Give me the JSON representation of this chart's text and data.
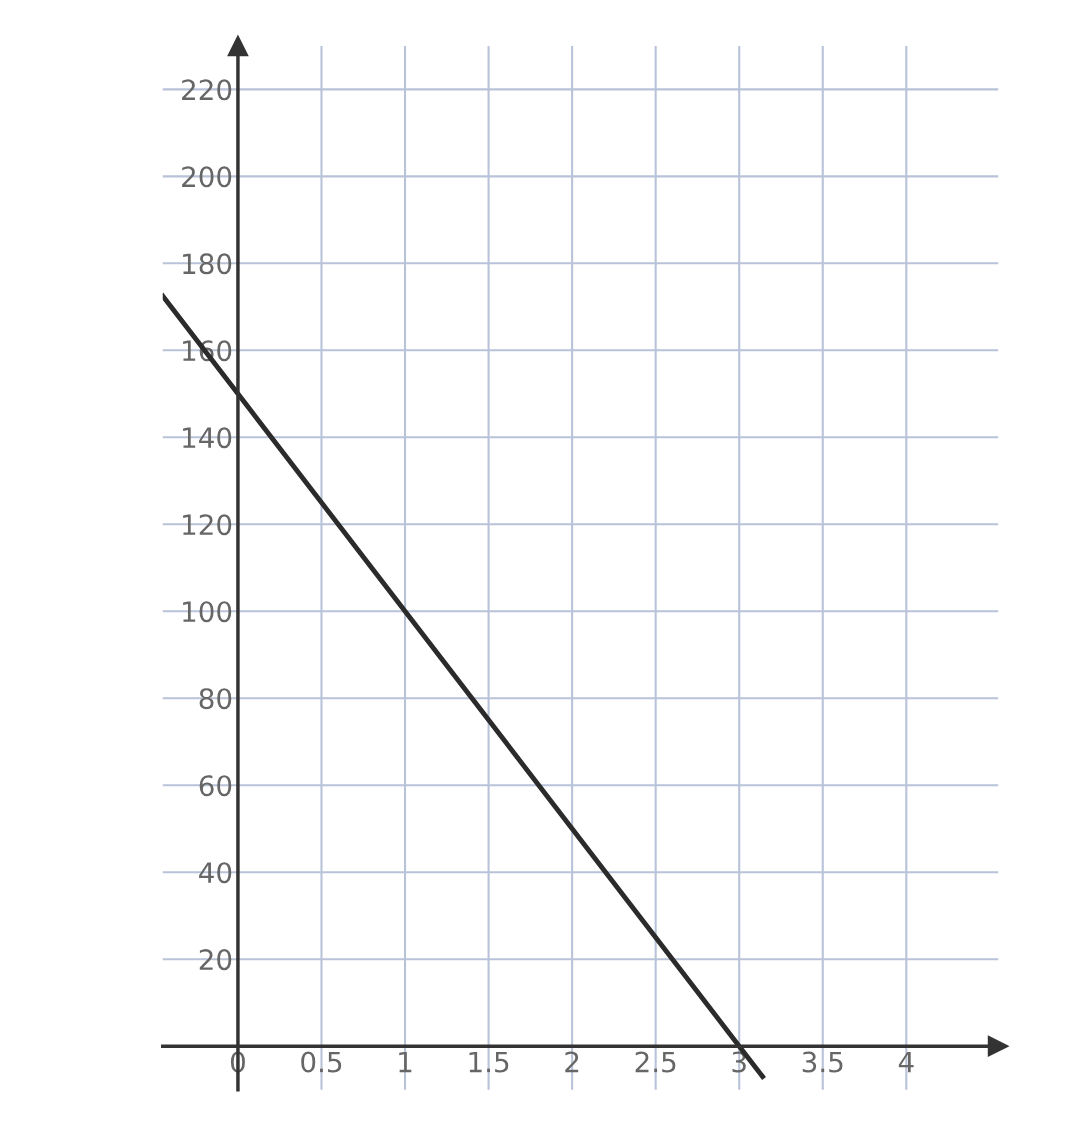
{
  "chart_data": {
    "type": "line",
    "series": [
      {
        "color": "#2b2b2b",
        "x": [
          -0.45,
          0,
          3,
          3.14
        ],
        "values": [
          172.5,
          150,
          0,
          -7
        ]
      }
    ],
    "xlim": [
      -0.45,
      4.55
    ],
    "ylim": [
      -10,
      230
    ],
    "xticks": [
      0,
      0.5,
      1,
      1.5,
      2,
      2.5,
      3,
      3.5,
      4
    ],
    "yticks": [
      20,
      40,
      60,
      80,
      100,
      120,
      140,
      160,
      180,
      200,
      220
    ],
    "grid": true,
    "marker": "none",
    "line_style": "solid"
  }
}
